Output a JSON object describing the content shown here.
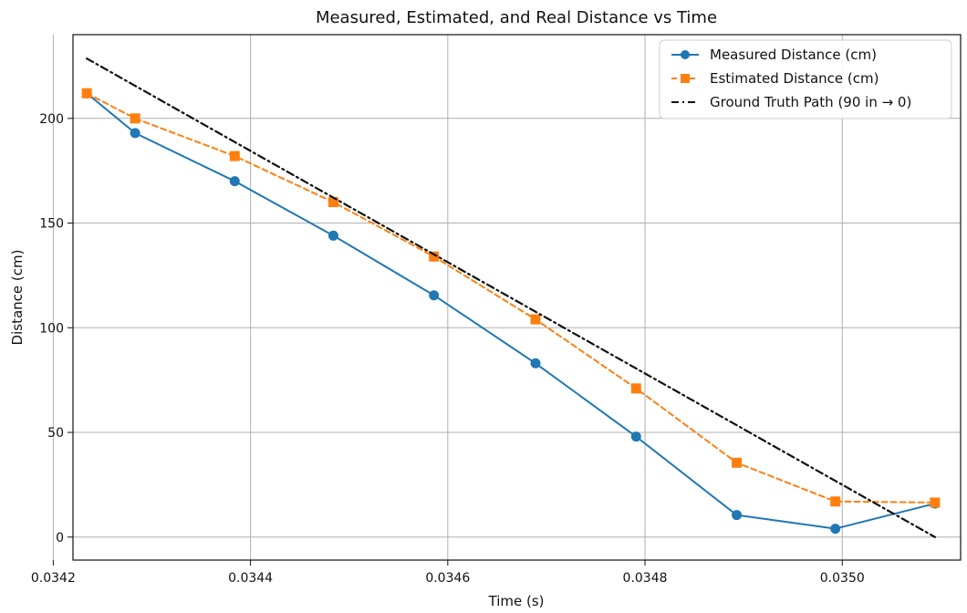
{
  "chart_data": {
    "type": "line",
    "title": "Measured, Estimated, and Real Distance vs Time",
    "xlabel": "Time (s)",
    "ylabel": "Distance (cm)",
    "xlim": [
      0.03422,
      0.03512
    ],
    "ylim": [
      -11,
      240
    ],
    "x_ticks": [
      0.0342,
      0.0344,
      0.0346,
      0.0348,
      0.035
    ],
    "x_tick_labels": [
      "0.0342",
      "0.0344",
      "0.0346",
      "0.0348",
      "0.0350"
    ],
    "y_ticks": [
      0,
      50,
      100,
      150,
      200
    ],
    "y_tick_labels": [
      "0",
      "50",
      "100",
      "150",
      "200"
    ],
    "grid": true,
    "legend_position": "top-right",
    "series": [
      {
        "name": "Measured Distance (cm)",
        "color": "#1f77b4",
        "line_style": "solid",
        "marker": "circle",
        "x": [
          0.034234,
          0.034283,
          0.034384,
          0.034484,
          0.034586,
          0.034689,
          0.034791,
          0.034893,
          0.034993,
          0.035094
        ],
        "y": [
          212,
          193,
          170,
          144,
          115.5,
          83,
          48,
          10.5,
          4,
          16
        ]
      },
      {
        "name": "Estimated Distance (cm)",
        "color": "#ff7f0e",
        "line_style": "dashed",
        "marker": "square",
        "x": [
          0.034234,
          0.034283,
          0.034384,
          0.034484,
          0.034586,
          0.034689,
          0.034791,
          0.034893,
          0.034993,
          0.035094
        ],
        "y": [
          212,
          200,
          182,
          160,
          134,
          104,
          71,
          35.5,
          17,
          16.5
        ]
      },
      {
        "name": "Ground Truth Path (90 in → 0)",
        "color": "#111111",
        "line_style": "dashdot",
        "marker": "none",
        "x": [
          0.034234,
          0.035094
        ],
        "y": [
          228.6,
          0
        ]
      }
    ]
  }
}
